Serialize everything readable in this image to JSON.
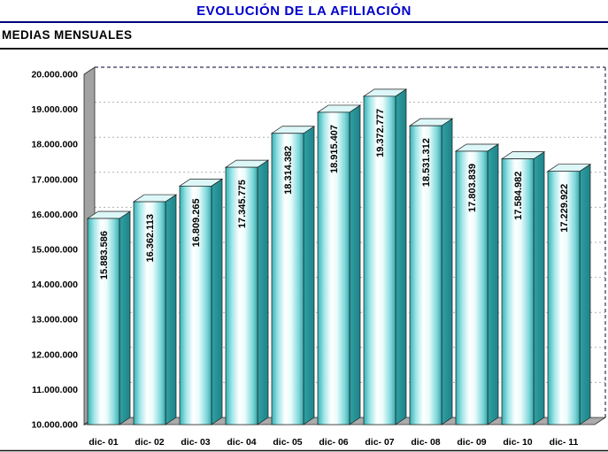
{
  "title": "EVOLUCIÓN DE LA AFILIACIÓN",
  "subtitle": "MEDIAS MENSUALES",
  "chart_data": {
    "type": "bar",
    "title": "EVOLUCIÓN DE LA AFILIACIÓN",
    "subtitle": "MEDIAS MENSUALES",
    "categories": [
      "dic- 01",
      "dic- 02",
      "dic- 03",
      "dic- 04",
      "dic- 05",
      "dic- 06",
      "dic- 07",
      "dic- 08",
      "dic- 09",
      "dic- 10",
      "dic- 11"
    ],
    "values": [
      15883586,
      16362113,
      16809265,
      17345775,
      18314382,
      18915407,
      19372777,
      18531312,
      17803839,
      17584982,
      17229922
    ],
    "value_labels": [
      "15.883.586",
      "16.362.113",
      "16.809.265",
      "17.345.775",
      "18.314.382",
      "18.915.407",
      "19.372.777",
      "18.531.312",
      "17.803.839",
      "17.584.982",
      "17.229.922"
    ],
    "y_ticks": [
      "20.000.000",
      "19.000.000",
      "18.000.000",
      "17.000.000",
      "16.000.000",
      "15.000.000",
      "14.000.000",
      "13.000.000",
      "12.000.000",
      "11.000.000",
      "10.000.000"
    ],
    "ylim": [
      10000000,
      20000000
    ],
    "grid": "dashed",
    "legend": "none",
    "bar_color": "#66cccc",
    "bar_highlight": "#ffffff",
    "bar_side_color": "#2fa0a4",
    "wall_color": "#a2a2a2",
    "title_color": "#0000cc",
    "rule_color": "#000080"
  }
}
